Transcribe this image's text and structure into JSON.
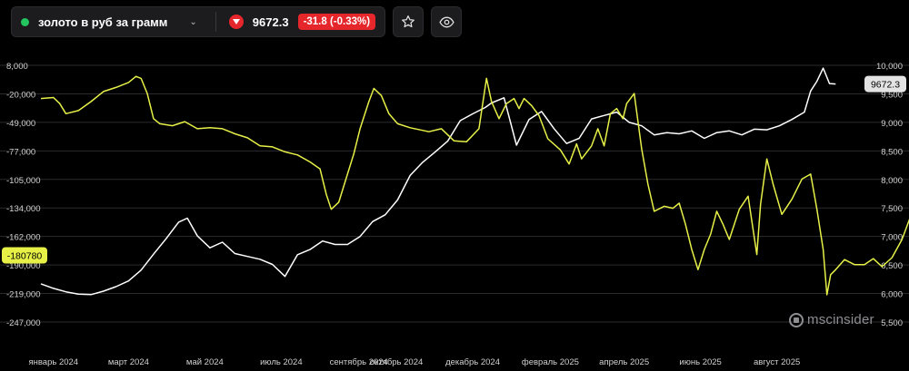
{
  "toolbar": {
    "symbol_name": "золото в руб за грамм",
    "status_color": "#22c55e",
    "price": "9672.3",
    "change": "-31.8 (-0.33%)",
    "down_color": "#e5262b",
    "favorite_icon": "star-icon",
    "view_icon": "eye-icon"
  },
  "brand": {
    "text": "mscinsider"
  },
  "chart_data": {
    "type": "line",
    "x_labels": [
      "январь 2024",
      "март 2024",
      "май 2024",
      "июль 2024",
      "сентябрь 2024",
      "октябрь 2024",
      "декабрь 2024",
      "февраль 2025",
      "апрель 2025",
      "июнь 2025",
      "август 2025"
    ],
    "x_label_day": [
      0,
      60,
      121,
      182,
      244,
      274,
      335,
      397,
      456,
      517,
      578
    ],
    "x_range_days": [
      -10,
      640
    ],
    "left_axis": {
      "ticks": [
        "8,000",
        "-20,000",
        "-49,000",
        "-77,000",
        "-105,000",
        "-134,000",
        "-162,000",
        "-190,000",
        "-219,000",
        "-247,000"
      ],
      "range": [
        -247000,
        8000
      ]
    },
    "right_axis": {
      "ticks": [
        "10,000",
        "9,500",
        "9,000",
        "8,500",
        "8,000",
        "7,500",
        "7,000",
        "6,500",
        "6,000",
        "5,500"
      ],
      "range": [
        5500,
        10000
      ]
    },
    "series": [
      {
        "axis": "right",
        "color": "#ffffff",
        "last_value_label": "9672.3",
        "points": [
          [
            -10,
            6170
          ],
          [
            0,
            6090
          ],
          [
            10,
            6030
          ],
          [
            20,
            5990
          ],
          [
            30,
            5980
          ],
          [
            40,
            6040
          ],
          [
            50,
            6120
          ],
          [
            60,
            6220
          ],
          [
            70,
            6410
          ],
          [
            80,
            6690
          ],
          [
            90,
            6960
          ],
          [
            100,
            7250
          ],
          [
            107,
            7320
          ],
          [
            115,
            7010
          ],
          [
            125,
            6800
          ],
          [
            135,
            6900
          ],
          [
            145,
            6700
          ],
          [
            155,
            6650
          ],
          [
            165,
            6600
          ],
          [
            175,
            6510
          ],
          [
            185,
            6300
          ],
          [
            195,
            6680
          ],
          [
            205,
            6770
          ],
          [
            215,
            6920
          ],
          [
            225,
            6860
          ],
          [
            235,
            6860
          ],
          [
            245,
            7000
          ],
          [
            255,
            7260
          ],
          [
            265,
            7380
          ],
          [
            275,
            7640
          ],
          [
            285,
            8070
          ],
          [
            295,
            8300
          ],
          [
            305,
            8480
          ],
          [
            315,
            8670
          ],
          [
            325,
            9030
          ],
          [
            335,
            9150
          ],
          [
            345,
            9260
          ],
          [
            350,
            9340
          ],
          [
            360,
            9430
          ],
          [
            370,
            8600
          ],
          [
            380,
            9050
          ],
          [
            390,
            9190
          ],
          [
            400,
            8890
          ],
          [
            410,
            8630
          ],
          [
            420,
            8720
          ],
          [
            430,
            9060
          ],
          [
            440,
            9120
          ],
          [
            450,
            9180
          ],
          [
            460,
            9000
          ],
          [
            470,
            8940
          ],
          [
            480,
            8780
          ],
          [
            490,
            8820
          ],
          [
            500,
            8800
          ],
          [
            510,
            8850
          ],
          [
            520,
            8720
          ],
          [
            530,
            8820
          ],
          [
            540,
            8850
          ],
          [
            550,
            8780
          ],
          [
            560,
            8880
          ],
          [
            570,
            8870
          ],
          [
            580,
            8940
          ],
          [
            590,
            9050
          ],
          [
            600,
            9180
          ],
          [
            605,
            9550
          ],
          [
            610,
            9720
          ],
          [
            615,
            9950
          ],
          [
            620,
            9680
          ],
          [
            625,
            9672.3
          ]
        ]
      },
      {
        "axis": "left",
        "color": "#e6f047",
        "last_value_label": "-180780",
        "points": [
          [
            -10,
            -25000
          ],
          [
            0,
            -24000
          ],
          [
            5,
            -30000
          ],
          [
            10,
            -40000
          ],
          [
            20,
            -37000
          ],
          [
            30,
            -28000
          ],
          [
            40,
            -18000
          ],
          [
            50,
            -14000
          ],
          [
            60,
            -9000
          ],
          [
            66,
            -3000
          ],
          [
            70,
            -5000
          ],
          [
            75,
            -20000
          ],
          [
            80,
            -45000
          ],
          [
            85,
            -50000
          ],
          [
            95,
            -52000
          ],
          [
            105,
            -48000
          ],
          [
            115,
            -55000
          ],
          [
            125,
            -54000
          ],
          [
            135,
            -55000
          ],
          [
            145,
            -60000
          ],
          [
            155,
            -64000
          ],
          [
            165,
            -72000
          ],
          [
            175,
            -73000
          ],
          [
            185,
            -78000
          ],
          [
            195,
            -81000
          ],
          [
            205,
            -88000
          ],
          [
            213,
            -95000
          ],
          [
            218,
            -120000
          ],
          [
            222,
            -135000
          ],
          [
            228,
            -128000
          ],
          [
            235,
            -100000
          ],
          [
            240,
            -80000
          ],
          [
            245,
            -55000
          ],
          [
            252,
            -28000
          ],
          [
            256,
            -15000
          ],
          [
            262,
            -22000
          ],
          [
            268,
            -40000
          ],
          [
            275,
            -50000
          ],
          [
            285,
            -54000
          ],
          [
            300,
            -58000
          ],
          [
            310,
            -55000
          ],
          [
            320,
            -67000
          ],
          [
            330,
            -68000
          ],
          [
            340,
            -55000
          ],
          [
            346,
            -5000
          ],
          [
            350,
            -28000
          ],
          [
            356,
            -45000
          ],
          [
            362,
            -30000
          ],
          [
            368,
            -25000
          ],
          [
            372,
            -35000
          ],
          [
            376,
            -25000
          ],
          [
            382,
            -32000
          ],
          [
            388,
            -42000
          ],
          [
            395,
            -65000
          ],
          [
            405,
            -76000
          ],
          [
            412,
            -90000
          ],
          [
            418,
            -70000
          ],
          [
            422,
            -85000
          ],
          [
            430,
            -72000
          ],
          [
            435,
            -55000
          ],
          [
            440,
            -72000
          ],
          [
            445,
            -40000
          ],
          [
            450,
            -35000
          ],
          [
            455,
            -45000
          ],
          [
            458,
            -30000
          ],
          [
            464,
            -20000
          ],
          [
            470,
            -75000
          ],
          [
            475,
            -110000
          ],
          [
            480,
            -137000
          ],
          [
            488,
            -132000
          ],
          [
            495,
            -134000
          ],
          [
            500,
            -129000
          ],
          [
            505,
            -150000
          ],
          [
            510,
            -175000
          ],
          [
            515,
            -195000
          ],
          [
            520,
            -175000
          ],
          [
            525,
            -160000
          ],
          [
            530,
            -137000
          ],
          [
            535,
            -150000
          ],
          [
            540,
            -165000
          ],
          [
            548,
            -135000
          ],
          [
            555,
            -122000
          ],
          [
            562,
            -180000
          ],
          [
            565,
            -130000
          ],
          [
            570,
            -85000
          ],
          [
            575,
            -110000
          ],
          [
            582,
            -140000
          ],
          [
            590,
            -125000
          ],
          [
            598,
            -105000
          ],
          [
            605,
            -100000
          ],
          [
            610,
            -135000
          ],
          [
            615,
            -175000
          ],
          [
            618,
            -220000
          ],
          [
            621,
            -200000
          ],
          [
            625,
            -195000
          ],
          [
            632,
            -185000
          ],
          [
            640,
            -190000
          ],
          [
            648,
            -190000
          ],
          [
            655,
            -184000
          ],
          [
            662,
            -192000
          ],
          [
            670,
            -183000
          ],
          [
            678,
            -165000
          ],
          [
            690,
            -125000
          ],
          [
            695,
            -115000
          ],
          [
            700,
            -120000
          ],
          [
            706,
            -127000
          ],
          [
            712,
            -160000
          ],
          [
            715,
            -180780
          ]
        ]
      }
    ],
    "grid": true,
    "legend": "none"
  }
}
